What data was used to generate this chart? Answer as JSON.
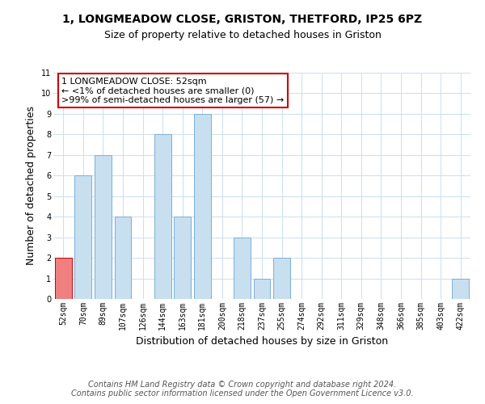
{
  "title": "1, LONGMEADOW CLOSE, GRISTON, THETFORD, IP25 6PZ",
  "subtitle": "Size of property relative to detached houses in Griston",
  "xlabel": "Distribution of detached houses by size in Griston",
  "ylabel": "Number of detached properties",
  "bin_labels": [
    "52sqm",
    "70sqm",
    "89sqm",
    "107sqm",
    "126sqm",
    "144sqm",
    "163sqm",
    "181sqm",
    "200sqm",
    "218sqm",
    "237sqm",
    "255sqm",
    "274sqm",
    "292sqm",
    "311sqm",
    "329sqm",
    "348sqm",
    "366sqm",
    "385sqm",
    "403sqm",
    "422sqm"
  ],
  "bar_heights": [
    2,
    6,
    7,
    4,
    0,
    8,
    4,
    9,
    0,
    3,
    1,
    2,
    0,
    0,
    0,
    0,
    0,
    0,
    0,
    0,
    1
  ],
  "highlight_index": 0,
  "highlight_color": "#f08080",
  "bar_color": "#c8dff0",
  "bar_edge_color": "#7ab0d4",
  "highlight_edge_color": "#cc0000",
  "annotation_box_color": "#ffffff",
  "annotation_box_edge": "#cc0000",
  "annotation_title": "1 LONGMEADOW CLOSE: 52sqm",
  "annotation_line1": "← <1% of detached houses are smaller (0)",
  "annotation_line2": ">99% of semi-detached houses are larger (57) →",
  "ylim": [
    0,
    11
  ],
  "yticks": [
    0,
    1,
    2,
    3,
    4,
    5,
    6,
    7,
    8,
    9,
    10,
    11
  ],
  "footer1": "Contains HM Land Registry data © Crown copyright and database right 2024.",
  "footer2": "Contains public sector information licensed under the Open Government Licence v3.0.",
  "background_color": "#ffffff",
  "grid_color": "#ccddf0",
  "title_fontsize": 10,
  "subtitle_fontsize": 9,
  "axis_label_fontsize": 9,
  "tick_fontsize": 7,
  "annotation_fontsize": 8,
  "footer_fontsize": 7
}
